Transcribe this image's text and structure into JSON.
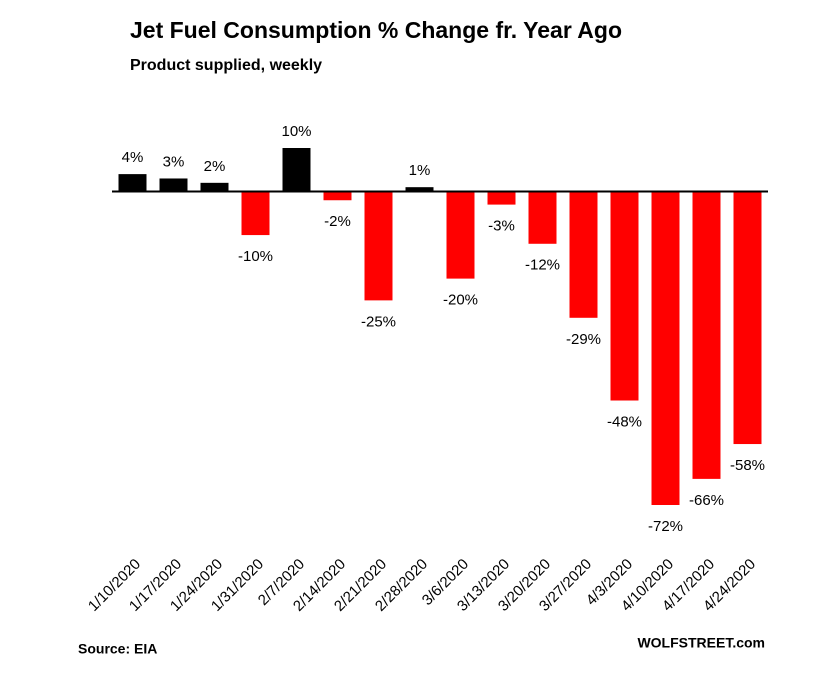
{
  "chart_data": {
    "type": "bar",
    "title": "Jet Fuel Consumption  % Change fr. Year Ago",
    "subtitle": "Product supplied, weekly",
    "categories": [
      "1/10/2020",
      "1/17/2020",
      "1/24/2020",
      "1/31/2020",
      "2/7/2020",
      "2/14/2020",
      "2/21/2020",
      "2/28/2020",
      "3/6/2020",
      "3/13/2020",
      "3/20/2020",
      "3/27/2020",
      "4/3/2020",
      "4/10/2020",
      "4/17/2020",
      "4/24/2020"
    ],
    "values": [
      4,
      3,
      2,
      -10,
      10,
      -2,
      -25,
      1,
      -20,
      -3,
      -12,
      -29,
      -48,
      -72,
      -66,
      -58
    ],
    "value_labels": [
      "4%",
      "3%",
      "2%",
      "-10%",
      "10%",
      "-2%",
      "-25%",
      "1%",
      "-20%",
      "-3%",
      "-12%",
      "-29%",
      "-48%",
      "-72%",
      "-66%",
      "-58%"
    ],
    "positive_color": "#000000",
    "negative_color": "#ff0000",
    "source": "Source: EIA",
    "credit": "WOLFSTREET.com"
  }
}
